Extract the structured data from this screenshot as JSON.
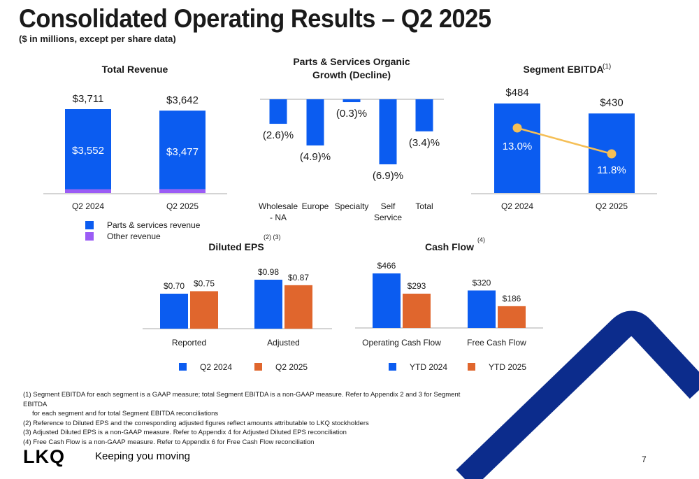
{
  "title": "Consolidated Operating Results – Q2 2025",
  "subtitle": "($ in millions, except per share data)",
  "colors": {
    "blue": "#0b5cf0",
    "orange": "#e0662d",
    "purple": "#9b5cf5",
    "yellow": "#f5bf56",
    "navy": "#0c2c8c"
  },
  "chart_data": [
    {
      "id": "total_revenue",
      "type": "bar",
      "title": "Total Revenue",
      "stacked": true,
      "categories": [
        "Q2 2024",
        "Q2 2025"
      ],
      "totals_labels": [
        "$3,711",
        "$3,642"
      ],
      "series": [
        {
          "name": "Parts & services revenue",
          "values": [
            3552,
            3477
          ],
          "labels": [
            "$3,552",
            "$3,477"
          ]
        },
        {
          "name": "Other revenue",
          "values": [
            159,
            165
          ]
        }
      ],
      "legend": [
        {
          "label": "Parts & services revenue",
          "color": "#0b5cf0"
        },
        {
          "label": "Other revenue",
          "color": "#9b5cf5"
        }
      ]
    },
    {
      "id": "organic_growth",
      "type": "bar",
      "title_lines": [
        "Parts & Services Organic",
        "Growth (Decline)"
      ],
      "categories": [
        [
          "Wholesale",
          "- NA"
        ],
        [
          "Europe"
        ],
        [
          "Specialty"
        ],
        [
          "Self",
          "Service"
        ],
        [
          "Total"
        ]
      ],
      "values": [
        -2.6,
        -4.9,
        -0.3,
        -6.9,
        -3.4
      ],
      "value_labels": [
        "(2.6)%",
        "(4.9)%",
        "(0.3)%",
        "(6.9)%",
        "(3.4)%"
      ]
    },
    {
      "id": "segment_ebitda",
      "type": "bar",
      "title": "Segment EBITDA",
      "title_note": "(1)",
      "categories": [
        "Q2 2024",
        "Q2 2025"
      ],
      "values": [
        484,
        430
      ],
      "value_labels": [
        "$484",
        "$430"
      ],
      "margin_line": {
        "values": [
          13.0,
          11.8
        ],
        "labels": [
          "13.0%",
          "11.8%"
        ]
      }
    },
    {
      "id": "diluted_eps",
      "type": "bar",
      "title": "Diluted EPS",
      "title_note": "(2) (3)",
      "categories": [
        "Reported",
        "Adjusted"
      ],
      "series": [
        {
          "name": "Q2 2024",
          "values": [
            0.7,
            0.98
          ],
          "labels": [
            "$0.70",
            "$0.98"
          ]
        },
        {
          "name": "Q2 2025",
          "values": [
            0.75,
            0.87
          ],
          "labels": [
            "$0.75",
            "$0.87"
          ]
        }
      ],
      "legend": [
        {
          "label": "Q2 2024",
          "color": "#0b5cf0"
        },
        {
          "label": "Q2 2025",
          "color": "#e0662d"
        }
      ]
    },
    {
      "id": "cash_flow",
      "type": "bar",
      "title": "Cash Flow",
      "title_note": "(4)",
      "categories": [
        "Operating Cash Flow",
        "Free Cash Flow"
      ],
      "series": [
        {
          "name": "YTD 2024",
          "values": [
            466,
            320
          ],
          "labels": [
            "$466",
            "$320"
          ]
        },
        {
          "name": "YTD 2025",
          "values": [
            293,
            186
          ],
          "labels": [
            "$293",
            "$186"
          ]
        }
      ],
      "legend": [
        {
          "label": "YTD 2024",
          "color": "#0b5cf0"
        },
        {
          "label": "YTD 2025",
          "color": "#e0662d"
        }
      ]
    }
  ],
  "footnotes": [
    {
      "text": "(1) Segment EBITDA for each segment is a GAAP measure; total Segment EBITDA is a non-GAAP measure. Refer to Appendix 2 and 3 for Segment EBITDA",
      "cont": false
    },
    {
      "text": "for each segment and for total Segment EBITDA reconciliations",
      "cont": true
    },
    {
      "text": "(2) Reference to Diluted EPS and the corresponding adjusted figures reflect amounts attributable to LKQ stockholders",
      "cont": false
    },
    {
      "text": "(3) Adjusted Diluted EPS is a non-GAAP measure. Refer to Appendix 4 for Adjusted Diluted EPS reconciliation",
      "cont": false
    },
    {
      "text": "(4) Free Cash Flow is a non-GAAP measure. Refer to Appendix 6 for Free Cash Flow reconciliation",
      "cont": false
    }
  ],
  "logo_text": "LKQ",
  "tagline": "Keeping you moving",
  "page_number": "7"
}
